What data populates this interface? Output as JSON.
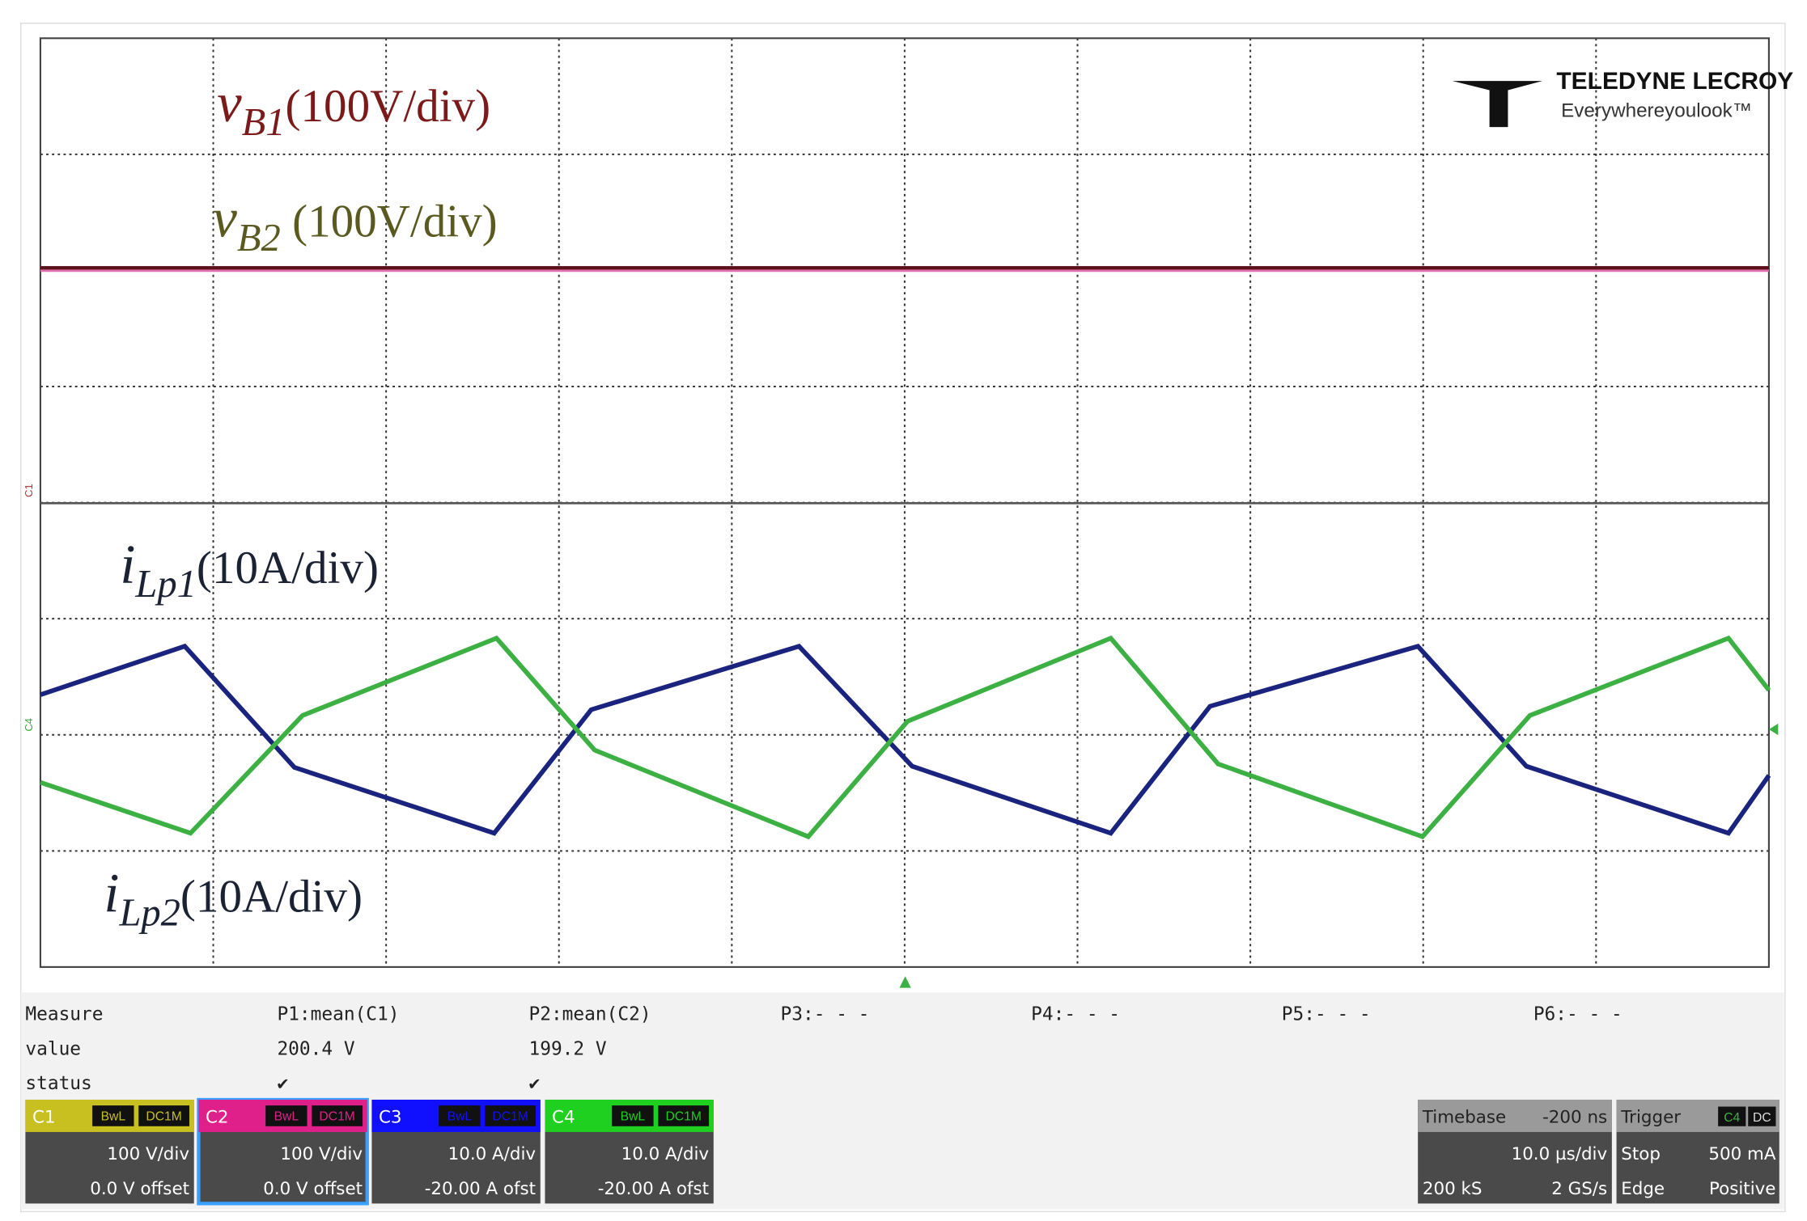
{
  "traces": [
    {
      "var": "v",
      "sub": "B1",
      "scale": "(100V/div)"
    },
    {
      "var": "v",
      "sub": "B2",
      "scale": " (100V/div)"
    },
    {
      "var": "i",
      "sub": "Lp1",
      "scale": "(10A/div)"
    },
    {
      "var": "i",
      "sub": "Lp2",
      "scale": "(10A/div)"
    }
  ],
  "logo": {
    "brand": "TELEDYNE LECROY",
    "tagline": "Everywhereyoulook™"
  },
  "markers": {
    "c1": "C1",
    "c4": "C4"
  },
  "measure": {
    "header": [
      "Measure",
      "P1:mean(C1)",
      "P2:mean(C2)",
      "P3:- - -",
      "P4:- - -",
      "P5:- - -",
      "P6:- - -"
    ],
    "value": [
      "value",
      "200.4 V",
      "199.2 V"
    ],
    "status": [
      "status",
      "✔",
      "✔"
    ]
  },
  "channels": [
    {
      "name": "C1",
      "tags": [
        "BwL",
        "DC1M"
      ],
      "scale": "100 V/div",
      "offset": "0.0 V offset"
    },
    {
      "name": "C2",
      "tags": [
        "BwL",
        "DC1M"
      ],
      "scale": "100 V/div",
      "offset": "0.0 V offset"
    },
    {
      "name": "C3",
      "tags": [
        "BwL",
        "DC1M"
      ],
      "scale": "10.0 A/div",
      "offset": "-20.00 A ofst"
    },
    {
      "name": "C4",
      "tags": [
        "BwL",
        "DC1M"
      ],
      "scale": "10.0 A/div",
      "offset": "-20.00 A ofst"
    }
  ],
  "timebase": {
    "title": "Timebase",
    "delay": "-200 ns",
    "scale": "10.0 µs/div",
    "samples": "200 kS",
    "rate": "2 GS/s"
  },
  "trigger": {
    "title": "Trigger",
    "tags": [
      "C4",
      "DC"
    ],
    "mode": "Stop",
    "level": "500 mA",
    "type": "Edge",
    "slope": "Positive"
  }
}
